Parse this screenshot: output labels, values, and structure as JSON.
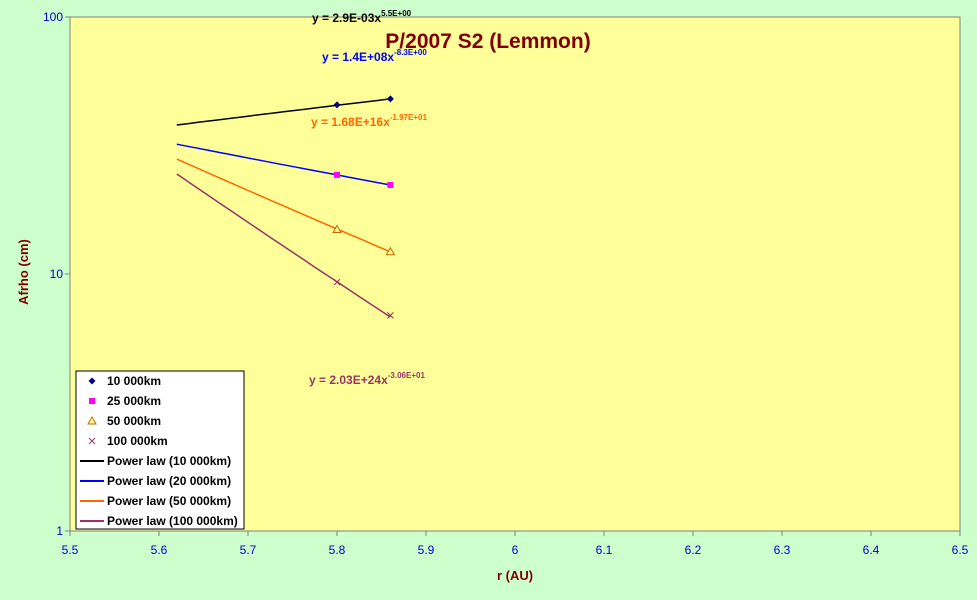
{
  "colors": {
    "background": "#ccffcc",
    "plot_area": "#ffff99",
    "axis_text": "#0000cc",
    "title_text": "#800000"
  },
  "chart_data": {
    "type": "scatter",
    "title": "P/2007 S2 (Lemmon)",
    "xlabel": "r (AU)",
    "ylabel": "Afrho (cm)",
    "xlim": [
      5.5,
      6.5
    ],
    "ylim": [
      1,
      100
    ],
    "y_scale": "log",
    "grid": false,
    "legend_position": "bottom-left",
    "x_ticks": [
      "5.5",
      "5.6",
      "5.7",
      "5.8",
      "5.9",
      "6",
      "6.1",
      "6.2",
      "6.3",
      "6.4",
      "6.5"
    ],
    "y_ticks": [
      "1",
      "10",
      "100"
    ],
    "series": [
      {
        "name": "10 000km",
        "marker": "diamond",
        "color": "#000080",
        "x": [
          5.8,
          5.86
        ],
        "y": [
          45.5,
          48.0
        ]
      },
      {
        "name": "25 000km",
        "marker": "square",
        "color": "#ff00ff",
        "x": [
          5.8,
          5.86
        ],
        "y": [
          24.3,
          22.2
        ]
      },
      {
        "name": "50 000km",
        "marker": "triangle",
        "color": "#cc6600",
        "x": [
          5.8,
          5.86
        ],
        "y": [
          14.9,
          12.2
        ]
      },
      {
        "name": "100 000km",
        "marker": "x",
        "color": "#993366",
        "x": [
          5.8,
          5.86
        ],
        "y": [
          9.3,
          6.9
        ]
      }
    ],
    "fits": [
      {
        "name": "Power law (10 000km)",
        "color": "#000000",
        "x_range": [
          5.62,
          5.86
        ],
        "y_range": [
          38.0,
          48.0
        ],
        "equation": "y = 2.9E-03x",
        "exponent": "5.5E+00",
        "equation_color": "#000000"
      },
      {
        "name": "Power law (20 000km)",
        "color": "#0000ff",
        "x_range": [
          5.62,
          5.86
        ],
        "y_range": [
          32.0,
          22.2
        ],
        "equation": "y = 1.4E+08x",
        "exponent": "-8.3E+00",
        "equation_color": "#0000ff"
      },
      {
        "name": "Power law (50 000km)",
        "color": "#ff6600",
        "x_range": [
          5.62,
          5.86
        ],
        "y_range": [
          28.0,
          12.2
        ],
        "equation": "y = 1.68E+16x",
        "exponent": "-1.97E+01",
        "equation_color": "#ff6600"
      },
      {
        "name": "Power law (100 000km)",
        "color": "#993366",
        "x_range": [
          5.62,
          5.86
        ],
        "y_range": [
          24.5,
          6.8
        ],
        "equation": "y = 2.03E+24x",
        "exponent": "-3.06E+01",
        "equation_color": "#993366"
      }
    ]
  }
}
